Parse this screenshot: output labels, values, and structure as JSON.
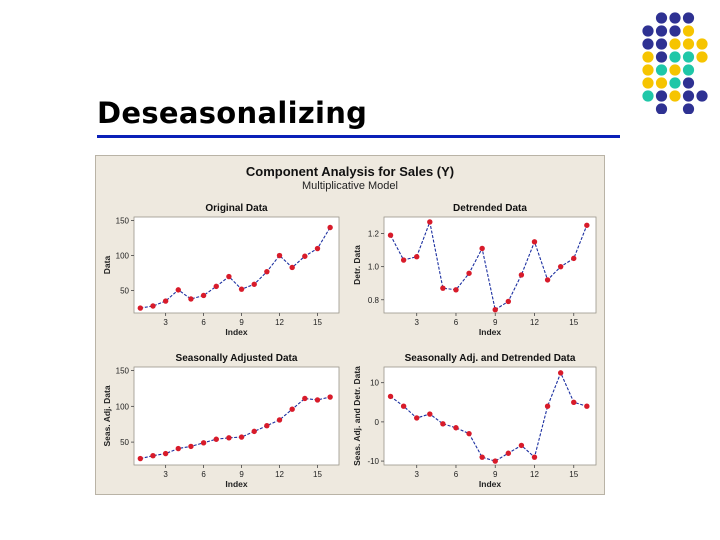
{
  "slide": {
    "title": "Deseasonalizing"
  },
  "figure": {
    "title": "Component Analysis for Sales (Y)",
    "subtitle": "Multiplicative Model"
  },
  "colors": {
    "accent_line": "#0b20b8",
    "series_line": "#1b2fa0",
    "marker": "#d81b2a",
    "panel_bg": "#eee9df",
    "dot_navy": "#2e3192",
    "dot_yellow": "#f6c400",
    "dot_teal": "#1fc7a8"
  },
  "chart_data": [
    {
      "type": "line",
      "title": "Original Data",
      "xlabel": "Index",
      "ylabel": "Data",
      "x": [
        1,
        2,
        3,
        4,
        5,
        6,
        7,
        8,
        9,
        10,
        11,
        12,
        13,
        14,
        15,
        16
      ],
      "values": [
        25,
        28,
        35,
        51,
        38,
        43,
        56,
        70,
        52,
        59,
        77,
        100,
        83,
        99,
        110,
        140
      ],
      "xticks": [
        3,
        6,
        9,
        12,
        15
      ],
      "yticks": [
        50,
        100,
        150
      ],
      "ylim": [
        18,
        155
      ],
      "xlim": [
        0.5,
        16.7
      ]
    },
    {
      "type": "line",
      "title": "Detrended Data",
      "xlabel": "Index",
      "ylabel": "Detr. Data",
      "x": [
        1,
        2,
        3,
        4,
        5,
        6,
        7,
        8,
        9,
        10,
        11,
        12,
        13,
        14,
        15,
        16
      ],
      "values": [
        1.19,
        1.04,
        1.06,
        1.27,
        0.87,
        0.86,
        0.96,
        1.11,
        0.74,
        0.79,
        0.95,
        1.15,
        0.92,
        1.0,
        1.05,
        1.25
      ],
      "xticks": [
        3,
        6,
        9,
        12,
        15
      ],
      "yticks": [
        0.8,
        1.0,
        1.2
      ],
      "ytick_labels": [
        "0.8",
        "1.0",
        "1.2"
      ],
      "ylim": [
        0.72,
        1.3
      ],
      "xlim": [
        0.5,
        16.7
      ]
    },
    {
      "type": "line",
      "title": "Seasonally Adjusted Data",
      "xlabel": "Index",
      "ylabel": "Seas. Adj. Data",
      "x": [
        1,
        2,
        3,
        4,
        5,
        6,
        7,
        8,
        9,
        10,
        11,
        12,
        13,
        14,
        15,
        16
      ],
      "values": [
        27,
        31,
        34,
        41,
        44,
        49,
        54,
        56,
        57,
        65,
        73,
        81,
        96,
        111,
        109,
        113
      ],
      "xticks": [
        3,
        6,
        9,
        12,
        15
      ],
      "yticks": [
        50,
        100,
        150
      ],
      "ylim": [
        18,
        155
      ],
      "xlim": [
        0.5,
        16.7
      ]
    },
    {
      "type": "line",
      "title": "Seasonally Adj. and Detrended Data",
      "xlabel": "Index",
      "ylabel": "Seas. Adj. and Detr. Data",
      "x": [
        1,
        2,
        3,
        4,
        5,
        6,
        7,
        8,
        9,
        10,
        11,
        12,
        13,
        14,
        15,
        16
      ],
      "values": [
        6.5,
        4,
        1,
        2,
        -0.5,
        -1.5,
        -3,
        -9,
        -10,
        -8,
        -6,
        -9,
        4,
        12.5,
        5,
        4
      ],
      "xticks": [
        3,
        6,
        9,
        12,
        15
      ],
      "yticks": [
        -10,
        0,
        10
      ],
      "ytick_labels": [
        "-10",
        "0",
        "10"
      ],
      "ylim": [
        -11,
        14
      ],
      "xlim": [
        0.5,
        16.7
      ]
    }
  ]
}
